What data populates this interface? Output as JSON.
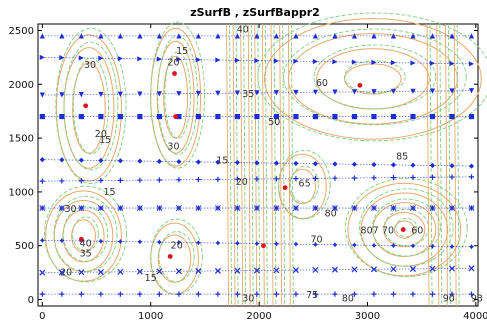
{
  "chart_data": {
    "type": "contour",
    "title": "zSurfB , zSurfBappr2",
    "xlabel": "",
    "ylabel": "",
    "xlim": [
      -40,
      4020
    ],
    "ylim": [
      -60,
      2560
    ],
    "x_ticks": [
      0,
      1000,
      2000,
      3000,
      4000
    ],
    "y_ticks": [
      0,
      500,
      1000,
      1500,
      2000,
      2500
    ],
    "grid": "none",
    "legend": "none",
    "colors": {
      "axes": "#000000",
      "contour_main": "#e8a86c",
      "contour_approx": "#7fd07f",
      "sample_points": "#1c2fd6",
      "max_points": "#e0121c"
    },
    "sample_rows": [
      {
        "y": 2450,
        "marker": "triangle-up"
      },
      {
        "y": 2250,
        "marker": "triangle-right"
      },
      {
        "y": 1900,
        "marker": "triangle-down"
      },
      {
        "y": 1700,
        "marker": "square"
      },
      {
        "y": 1300,
        "marker": "diamond"
      },
      {
        "y": 1100,
        "marker": "plus"
      },
      {
        "y": 850,
        "marker": "asterisk"
      },
      {
        "y": 550,
        "marker": "star"
      },
      {
        "y": 250,
        "marker": "cross"
      },
      {
        "y": 50,
        "marker": "plus"
      }
    ],
    "sample_x": [
      0,
      180,
      360,
      540,
      720,
      900,
      1080,
      1260,
      1440,
      1620,
      1800,
      1980,
      2160,
      2340,
      2520,
      2700,
      2880,
      3060,
      3240,
      3420,
      3600,
      3780,
      3960
    ],
    "maxima": [
      {
        "x": 400,
        "y": 1800
      },
      {
        "x": 1220,
        "y": 2100
      },
      {
        "x": 1230,
        "y": 1700
      },
      {
        "x": 2240,
        "y": 1040
      },
      {
        "x": 2930,
        "y": 1990
      },
      {
        "x": 360,
        "y": 560
      },
      {
        "x": 1180,
        "y": 400
      },
      {
        "x": 2040,
        "y": 500
      },
      {
        "x": 3330,
        "y": 650
      }
    ],
    "contour_labels": [
      {
        "x": 440,
        "y": 2180,
        "text": "30"
      },
      {
        "x": 540,
        "y": 1540,
        "text": "20"
      },
      {
        "x": 580,
        "y": 1480,
        "text": "15"
      },
      {
        "x": 1290,
        "y": 2310,
        "text": "15"
      },
      {
        "x": 1210,
        "y": 2200,
        "text": "20"
      },
      {
        "x": 1210,
        "y": 1420,
        "text": "30"
      },
      {
        "x": 1850,
        "y": 2510,
        "text": "40"
      },
      {
        "x": 1900,
        "y": 1910,
        "text": "35"
      },
      {
        "x": 2140,
        "y": 1650,
        "text": "50"
      },
      {
        "x": 2580,
        "y": 2010,
        "text": "60"
      },
      {
        "x": 1660,
        "y": 1290,
        "text": "15"
      },
      {
        "x": 1840,
        "y": 1090,
        "text": "20"
      },
      {
        "x": 2420,
        "y": 1080,
        "text": "65"
      },
      {
        "x": 2660,
        "y": 800,
        "text": "80"
      },
      {
        "x": 2530,
        "y": 560,
        "text": "70"
      },
      {
        "x": 3320,
        "y": 1330,
        "text": "85"
      },
      {
        "x": 3020,
        "y": 640,
        "text": "807"
      },
      {
        "x": 3190,
        "y": 640,
        "text": "70"
      },
      {
        "x": 3460,
        "y": 640,
        "text": "60"
      },
      {
        "x": 620,
        "y": 1000,
        "text": "15"
      },
      {
        "x": 260,
        "y": 840,
        "text": "30"
      },
      {
        "x": 400,
        "y": 520,
        "text": "40"
      },
      {
        "x": 400,
        "y": 430,
        "text": "35"
      },
      {
        "x": 220,
        "y": 250,
        "text": "20"
      },
      {
        "x": 1240,
        "y": 500,
        "text": "20"
      },
      {
        "x": 1000,
        "y": 200,
        "text": "15"
      },
      {
        "x": 1900,
        "y": 10,
        "text": "30"
      },
      {
        "x": 2490,
        "y": 40,
        "text": "75"
      },
      {
        "x": 2820,
        "y": 10,
        "text": "80"
      },
      {
        "x": 3750,
        "y": 10,
        "text": "90"
      },
      {
        "x": 4010,
        "y": 10,
        "text": "93"
      }
    ],
    "contour_regions": [
      {
        "cx": 430,
        "cy": 1780,
        "rx": [
          150,
          230,
          300
        ],
        "ry": [
          420,
          560,
          680
        ]
      },
      {
        "cx": 1230,
        "cy": 1880,
        "rx": [
          110,
          170,
          230
        ],
        "ry": [
          380,
          520,
          640
        ]
      },
      {
        "cx": 380,
        "cy": 590,
        "rx": [
          110,
          190,
          270,
          350
        ],
        "ry": [
          150,
          240,
          330,
          420
        ]
      },
      {
        "cx": 1220,
        "cy": 380,
        "rx": [
          150,
          220
        ],
        "ry": [
          220,
          330
        ]
      },
      {
        "cx": 3340,
        "cy": 650,
        "rx": [
          90,
          190,
          290,
          400,
          520
        ],
        "ry": [
          80,
          160,
          250,
          340,
          430
        ]
      },
      {
        "cx": 2400,
        "cy": 1050,
        "rx": [
          120,
          220
        ],
        "ry": [
          160,
          300
        ]
      },
      {
        "cx": 3050,
        "cy": 2050,
        "rx": [
          260,
          520,
          780,
          1000
        ],
        "ry": [
          140,
          280,
          420,
          560
        ]
      }
    ],
    "contour_verticals": [
      1700,
      1760,
      1830,
      1900,
      1960,
      2030,
      2110,
      2190,
      2270,
      3550,
      3640,
      3720,
      3800
    ]
  }
}
